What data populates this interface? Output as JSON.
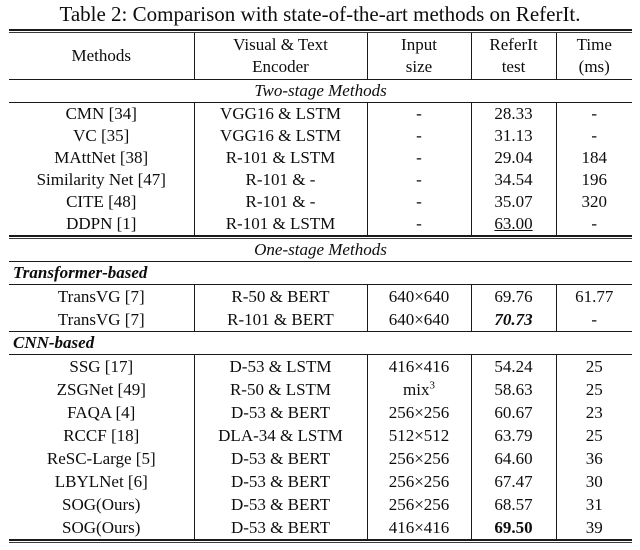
{
  "title": "Table 2: Comparison with state-of-the-art methods on ReferIt.",
  "table": {
    "header": [
      [
        "Methods"
      ],
      [
        "Visual & Text",
        "Encoder"
      ],
      [
        "Input",
        "size"
      ],
      [
        "ReferIt",
        "test"
      ],
      [
        "Time",
        "(ms)"
      ]
    ],
    "sections": [
      {
        "type": "rule"
      },
      {
        "type": "header"
      },
      {
        "type": "center",
        "label": "Two-stage Methods"
      },
      {
        "type": "rows",
        "size": "normal",
        "rows": [
          {
            "cells": [
              "CMN [34]",
              "VGG16 & LSTM",
              "-",
              "28.33",
              "-"
            ]
          },
          {
            "cells": [
              "VC [35]",
              "VGG16 & LSTM",
              "-",
              "31.13",
              "-"
            ]
          },
          {
            "cells": [
              "MAttNet [38]",
              "R-101 & LSTM",
              "-",
              "29.04",
              "184"
            ]
          },
          {
            "cells": [
              "Similarity Net [47]",
              "R-101 & -",
              "-",
              "34.54",
              "196"
            ]
          },
          {
            "cells": [
              "CITE [48]",
              "R-101 & -",
              "-",
              "35.07",
              "320"
            ]
          },
          {
            "cells": [
              "DDPN [1]",
              "R-101 & LSTM",
              "-",
              {
                "t": "63.00",
                "style": "u"
              },
              "-"
            ]
          }
        ]
      },
      {
        "type": "rule"
      },
      {
        "type": "center",
        "label": "One-stage Methods"
      },
      {
        "type": "left",
        "label": "Transformer-based"
      },
      {
        "type": "rows",
        "size": "tall",
        "rows": [
          {
            "cells": [
              "TransVG [7]",
              "R-50 & BERT",
              "640×640",
              "69.76",
              "61.77"
            ]
          },
          {
            "cells": [
              "TransVG [7]",
              "R-101 & BERT",
              "640×640",
              {
                "t": "70.73",
                "style": "bi"
              },
              "-"
            ]
          }
        ]
      },
      {
        "type": "left",
        "label": "CNN-based"
      },
      {
        "type": "rows",
        "size": "tall",
        "rows": [
          {
            "cells": [
              "SSG [17]",
              "D-53 & LSTM",
              "416×416",
              "54.24",
              "25"
            ]
          },
          {
            "cells": [
              "ZSGNet [49]",
              "R-50 & LSTM",
              {
                "t": "mix",
                "sup": "3"
              },
              "58.63",
              "25"
            ]
          },
          {
            "cells": [
              "FAQA [4]",
              "D-53 & BERT",
              "256×256",
              "60.67",
              "23"
            ]
          },
          {
            "cells": [
              "RCCF [18]",
              "DLA-34 & LSTM",
              "512×512",
              "63.79",
              "25"
            ]
          },
          {
            "cells": [
              "ReSC-Large [5]",
              "D-53 & BERT",
              "256×256",
              "64.60",
              "36"
            ]
          },
          {
            "cells": [
              "LBYLNet [6]",
              "D-53 & BERT",
              "256×256",
              "67.47",
              "30"
            ]
          },
          {
            "cells": [
              "SOG(Ours)",
              "D-53 & BERT",
              "256×256",
              "68.57",
              "31"
            ]
          },
          {
            "cells": [
              "SOG(Ours)",
              "D-53 & BERT",
              "416×416",
              {
                "t": "69.50",
                "style": "b"
              },
              "39"
            ]
          }
        ]
      },
      {
        "type": "rule"
      }
    ]
  }
}
